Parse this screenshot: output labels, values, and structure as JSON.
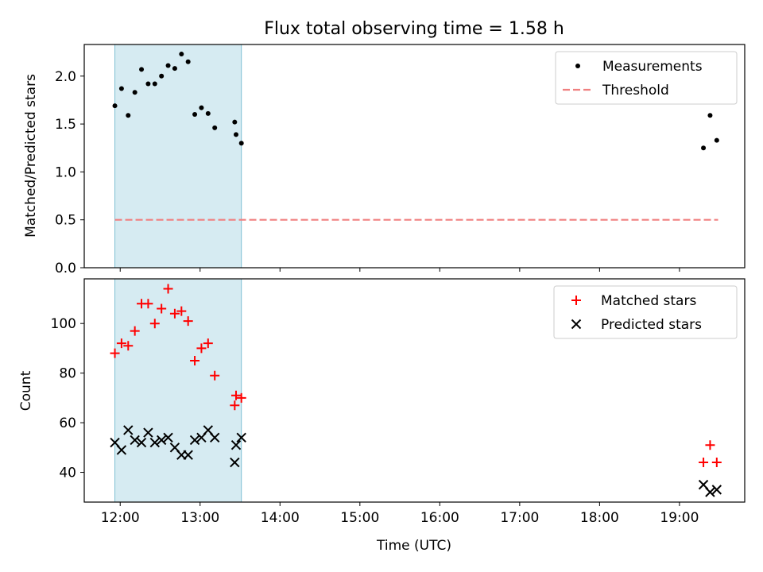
{
  "chart_data": [
    {
      "type": "scatter",
      "title": "Flux total observing time = 1.58 h",
      "xlabel": "",
      "ylabel": "Matched/Predicted stars",
      "xlim": [
        "11:33",
        "19:49"
      ],
      "ylim": [
        0,
        2.33
      ],
      "yticks": [
        0.0,
        0.5,
        1.0,
        1.5,
        2.0
      ],
      "ytick_labels": [
        "0.0",
        "0.5",
        "1.0",
        "1.5",
        "2.0"
      ],
      "shaded_interval": [
        "11:56",
        "13:31"
      ],
      "legend_position": "top-right",
      "series": [
        {
          "name": "Measurements",
          "color": "#000000",
          "marker": "dot",
          "points": [
            [
              "11:56",
              1.69
            ],
            [
              "12:01",
              1.87
            ],
            [
              "12:06",
              1.59
            ],
            [
              "12:11",
              1.83
            ],
            [
              "12:16",
              2.07
            ],
            [
              "12:21",
              1.92
            ],
            [
              "12:26",
              1.92
            ],
            [
              "12:31",
              2.0
            ],
            [
              "12:36",
              2.11
            ],
            [
              "12:41",
              2.08
            ],
            [
              "12:46",
              2.23
            ],
            [
              "12:51",
              2.15
            ],
            [
              "12:56",
              1.6
            ],
            [
              "13:01",
              1.67
            ],
            [
              "13:06",
              1.61
            ],
            [
              "13:11",
              1.46
            ],
            [
              "13:26",
              1.52
            ],
            [
              "13:27",
              1.39
            ],
            [
              "13:31",
              1.3
            ],
            [
              "19:18",
              1.25
            ],
            [
              "19:23",
              1.59
            ],
            [
              "19:28",
              1.33
            ]
          ]
        },
        {
          "name": "Threshold",
          "color": "#f08080",
          "style": "dashed",
          "points": [
            [
              "11:56",
              0.5
            ],
            [
              "19:29",
              0.5
            ]
          ]
        }
      ]
    },
    {
      "type": "scatter",
      "title": "",
      "xlabel": "Time (UTC)",
      "ylabel": "Count",
      "xlim": [
        "11:33",
        "19:49"
      ],
      "ylim": [
        28,
        118
      ],
      "yticks": [
        40,
        60,
        80,
        100
      ],
      "ytick_labels": [
        "40",
        "60",
        "80",
        "100"
      ],
      "xticks": [
        "12:00",
        "13:00",
        "14:00",
        "15:00",
        "16:00",
        "17:00",
        "18:00",
        "19:00"
      ],
      "xtick_labels": [
        "12:00",
        "13:00",
        "14:00",
        "15:00",
        "16:00",
        "17:00",
        "18:00",
        "19:00"
      ],
      "shaded_interval": [
        "11:56",
        "13:31"
      ],
      "legend_position": "top-right",
      "series": [
        {
          "name": "Matched stars",
          "color": "#ff0000",
          "marker": "plus",
          "points": [
            [
              "11:56",
              88
            ],
            [
              "12:01",
              92
            ],
            [
              "12:06",
              91
            ],
            [
              "12:11",
              97
            ],
            [
              "12:16",
              108
            ],
            [
              "12:21",
              108
            ],
            [
              "12:26",
              100
            ],
            [
              "12:31",
              106
            ],
            [
              "12:36",
              114
            ],
            [
              "12:41",
              104
            ],
            [
              "12:46",
              105
            ],
            [
              "12:51",
              101
            ],
            [
              "12:56",
              85
            ],
            [
              "13:01",
              90
            ],
            [
              "13:06",
              92
            ],
            [
              "13:11",
              79
            ],
            [
              "13:26",
              67
            ],
            [
              "13:27",
              71
            ],
            [
              "13:31",
              70
            ],
            [
              "19:18",
              44
            ],
            [
              "19:23",
              51
            ],
            [
              "19:28",
              44
            ]
          ]
        },
        {
          "name": "Predicted stars",
          "color": "#000000",
          "marker": "x",
          "points": [
            [
              "11:56",
              52
            ],
            [
              "12:01",
              49
            ],
            [
              "12:06",
              57
            ],
            [
              "12:11",
              53
            ],
            [
              "12:16",
              52
            ],
            [
              "12:21",
              56
            ],
            [
              "12:26",
              52
            ],
            [
              "12:31",
              53
            ],
            [
              "12:36",
              54
            ],
            [
              "12:41",
              50
            ],
            [
              "12:46",
              47
            ],
            [
              "12:51",
              47
            ],
            [
              "12:56",
              53
            ],
            [
              "13:01",
              54
            ],
            [
              "13:06",
              57
            ],
            [
              "13:11",
              54
            ],
            [
              "13:26",
              44
            ],
            [
              "13:27",
              51
            ],
            [
              "13:31",
              54
            ],
            [
              "19:18",
              35
            ],
            [
              "19:23",
              32
            ],
            [
              "19:28",
              33
            ]
          ]
        }
      ]
    }
  ]
}
